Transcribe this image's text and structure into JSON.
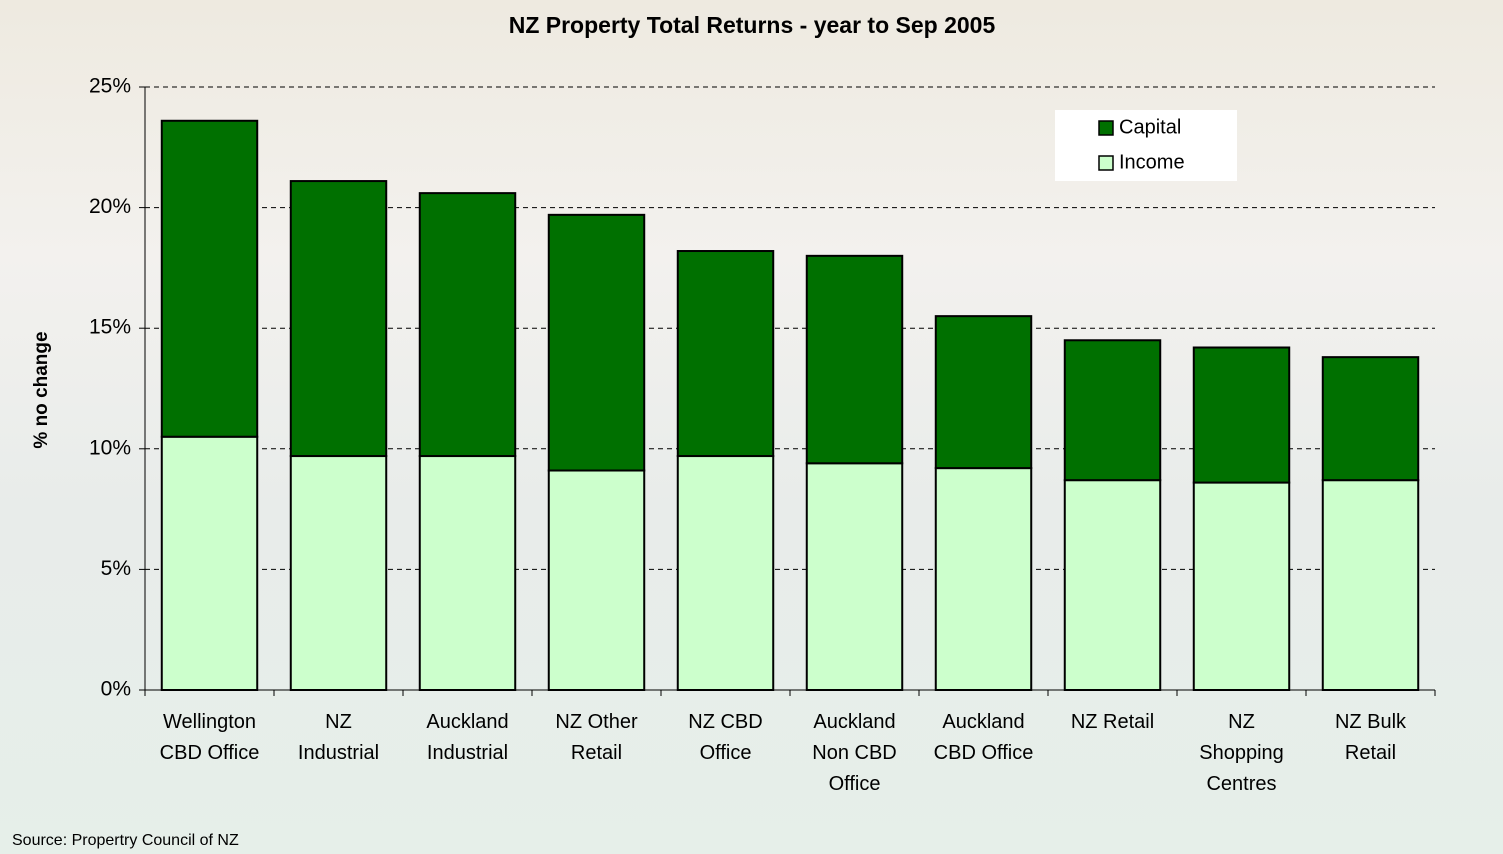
{
  "chart_data": {
    "type": "bar",
    "stacked": true,
    "title": "NZ Property Total Returns - year to Sep 2005",
    "y_label": "% no change",
    "source": "Source:  Propertry Council of NZ",
    "categories": [
      "Wellington CBD Office",
      "NZ Industrial",
      "Auckland Industrial",
      "NZ Other Retail",
      "NZ CBD Office",
      "Auckland Non CBD Office",
      "Auckland CBD Office",
      "NZ Retail",
      "NZ Shopping Centres",
      "NZ Bulk Retail"
    ],
    "series": [
      {
        "name": "Income",
        "color": "#ccffcc",
        "values": [
          10.5,
          9.7,
          9.7,
          9.1,
          9.7,
          9.4,
          9.2,
          8.7,
          8.6,
          8.7
        ]
      },
      {
        "name": "Capital",
        "color": "#007000",
        "values": [
          13.1,
          11.4,
          10.9,
          10.6,
          8.5,
          8.6,
          6.3,
          5.8,
          5.6,
          5.1
        ]
      }
    ],
    "ylim": [
      0,
      25
    ],
    "yticks": [
      {
        "value": 0,
        "label": "0%"
      },
      {
        "value": 5,
        "label": "5%"
      },
      {
        "value": 10,
        "label": "10%"
      },
      {
        "value": 15,
        "label": "15%"
      },
      {
        "value": 20,
        "label": "20%"
      },
      {
        "value": 25,
        "label": "25%"
      }
    ],
    "grid": true,
    "legend": "top-right"
  }
}
